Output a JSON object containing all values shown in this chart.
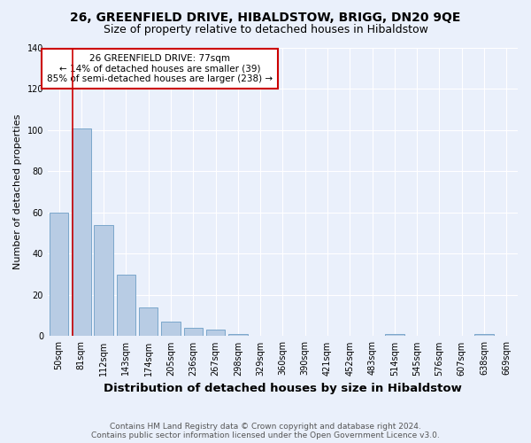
{
  "title1": "26, GREENFIELD DRIVE, HIBALDSTOW, BRIGG, DN20 9QE",
  "title2": "Size of property relative to detached houses in Hibaldstow",
  "xlabel": "Distribution of detached houses by size in Hibaldstow",
  "ylabel": "Number of detached properties",
  "footnote1": "Contains HM Land Registry data © Crown copyright and database right 2024.",
  "footnote2": "Contains public sector information licensed under the Open Government Licence v3.0.",
  "categories": [
    "50sqm",
    "81sqm",
    "112sqm",
    "143sqm",
    "174sqm",
    "205sqm",
    "236sqm",
    "267sqm",
    "298sqm",
    "329sqm",
    "360sqm",
    "390sqm",
    "421sqm",
    "452sqm",
    "483sqm",
    "514sqm",
    "545sqm",
    "576sqm",
    "607sqm",
    "638sqm",
    "669sqm"
  ],
  "values": [
    60,
    101,
    54,
    30,
    14,
    7,
    4,
    3,
    1,
    0,
    0,
    0,
    0,
    0,
    0,
    1,
    0,
    0,
    0,
    1,
    0
  ],
  "bar_color": "#b8cce4",
  "bar_edge_color": "#7ba7cb",
  "annotation_text": "26 GREENFIELD DRIVE: 77sqm\n← 14% of detached houses are smaller (39)\n85% of semi-detached houses are larger (238) →",
  "annotation_box_color": "#ffffff",
  "annotation_box_edge": "#cc0000",
  "red_line_x": 0.6,
  "bg_color": "#eaf0fb",
  "plot_bg_color": "#eaf0fb",
  "grid_color": "#ffffff",
  "ylim": [
    0,
    140
  ],
  "title1_fontsize": 10,
  "title2_fontsize": 9,
  "xlabel_fontsize": 9.5,
  "ylabel_fontsize": 8,
  "tick_fontsize": 7,
  "annotation_fontsize": 7.5,
  "footnote_fontsize": 6.5
}
